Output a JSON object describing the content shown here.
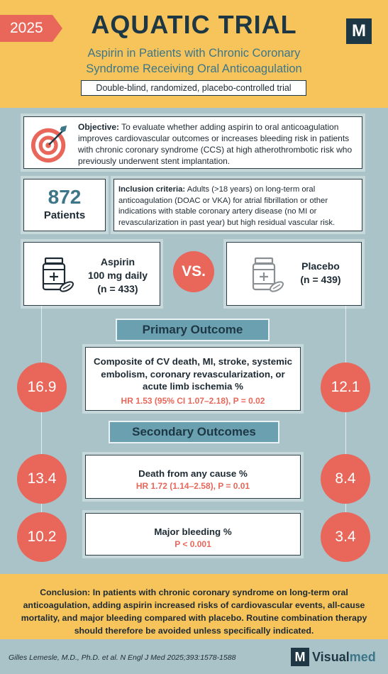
{
  "header": {
    "year": "2025",
    "title": "AQUATIC TRIAL",
    "logo_letter": "M",
    "subtitle_line1": "Aspirin in Patients with Chronic Coronary",
    "subtitle_line2": "Syndrome Receiving Oral Anticoagulation",
    "design": "Double-blind, randomized, placebo-controlled trial"
  },
  "objective": {
    "lead": "Objective:",
    "text": "To evaluate whether adding aspirin to oral anticoagulation improves cardiovascular outcomes or increases bleeding risk in patients with chronic coronary syndrome (CCS) at high atherothrombotic risk who previously underwent stent implantation.",
    "icon": "target-icon"
  },
  "patients": {
    "count": "872",
    "label": "Patients"
  },
  "inclusion": {
    "lead": "Inclusion criteria:",
    "text": "Adults (>18 years) on long-term oral anticoagulation (DOAC or VKA) for atrial fibrillation or other indications with stable coronary artery disease (no MI or revascularization in past year) but high residual vascular risk."
  },
  "arms": {
    "aspirin": {
      "name": "Aspirin",
      "dose": "100 mg daily",
      "n": "(n = 433)",
      "icon": "pill-bottle-icon"
    },
    "vs": "VS.",
    "placebo": {
      "name": "Placebo",
      "n": "(n = 439)",
      "icon": "pill-bottle-icon"
    }
  },
  "primary": {
    "label": "Primary Outcome",
    "title": "Composite of CV death, MI, stroke, systemic embolism, coronary revascularization, or acute limb ischemia %",
    "stat": "HR 1.53 (95% CI 1.07–2.18), P = 0.02",
    "aspirin_value": "16.9",
    "placebo_value": "12.1"
  },
  "secondary": {
    "label": "Secondary Outcomes",
    "death": {
      "title": "Death from any cause %",
      "stat": "HR 1.72 (1.14–2.58), P = 0.01",
      "aspirin_value": "13.4",
      "placebo_value": "8.4"
    },
    "bleeding": {
      "title": "Major bleeding %",
      "stat": "P < 0.001",
      "aspirin_value": "10.2",
      "placebo_value": "3.4"
    }
  },
  "conclusion": {
    "lead": "Conclusion:",
    "text": "In patients with chronic coronary syndrome on long-term oral anticoagulation, adding aspirin increased risks of cardiovascular events, all-cause mortality, and major bleeding compared with placebo. Routine combination therapy should therefore be avoided unless specifically indicated."
  },
  "footer": {
    "citation": "Gilles Lemesle, M.D., Ph.D. et al.  N Engl J Med 2025;393:1578-1588",
    "brand_letter": "M",
    "brand_part1": "Visual",
    "brand_part2": "med"
  },
  "colors": {
    "accent_red": "#e8675a",
    "header_yellow": "#f7c45c",
    "background_teal": "#a9c3c8",
    "label_teal": "#6aa0b0",
    "navy": "#1d3844"
  }
}
